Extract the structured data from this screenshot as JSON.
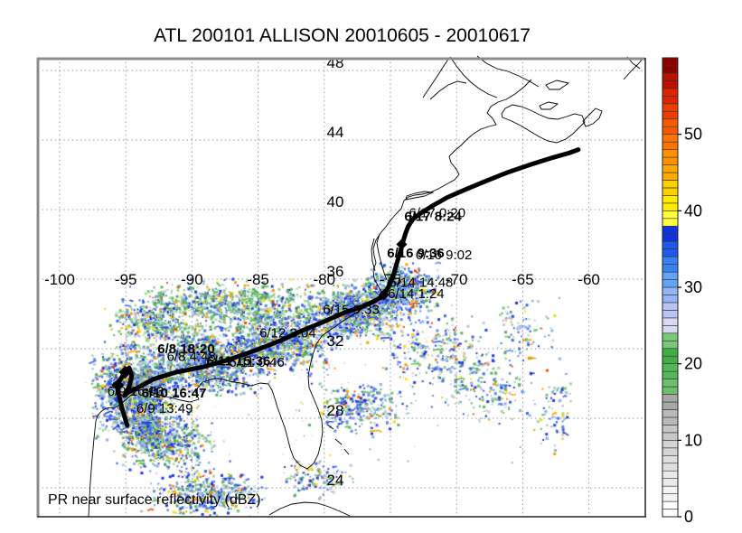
{
  "title": "ATL 200101 ALLISON 20010605 - 20010617",
  "plot": {
    "footer_label": "PR near surface reflectivity (dBZ)"
  },
  "axes": {
    "lon_tick_labels": [
      "-100",
      "-95",
      "-90",
      "-85",
      "-80",
      "-75",
      "-70",
      "-65",
      "-60"
    ],
    "lon_tick_values": [
      -100,
      -95,
      -90,
      -85,
      -80,
      -75,
      -70,
      -65,
      -60
    ],
    "lat_tick_labels": [
      "24",
      "28",
      "32",
      "36",
      "40",
      "44",
      "48"
    ],
    "lat_tick_values": [
      24,
      28,
      32,
      36,
      40,
      44,
      48
    ]
  },
  "colorbar": {
    "min": 0,
    "max": 60,
    "units": "dBZ",
    "tick_labels": [
      "0",
      "10",
      "20",
      "30",
      "40",
      "50"
    ],
    "tick_values": [
      0,
      10,
      20,
      30,
      40,
      50
    ],
    "cells_per_color": 2,
    "colors_bottom_to_top": [
      "#ffffff",
      "#f4f4f4",
      "#eaeaea",
      "#dfdfdf",
      "#d4d4d4",
      "#c7c7c7",
      "#b9b9b9",
      "#a8a8a8",
      "#6dbf6d",
      "#57b657",
      "#42ad42",
      "#79c879",
      "#d8d8f2",
      "#bcc4f2",
      "#93b5f7",
      "#63a3f7",
      "#3582f2",
      "#2057e8",
      "#1133dd",
      "#ffff40",
      "#ffee00",
      "#ffd000",
      "#ffaa00",
      "#ff9000",
      "#ff7400",
      "#f85800",
      "#ee3d00",
      "#dd2400",
      "#bb0f00",
      "#8b0000"
    ]
  },
  "chart_data": {
    "type": "scatter",
    "title": "ATL 200101 ALLISON 20010605 - 20010617",
    "storm": {
      "basin": "ATL",
      "id": "200101",
      "name": "ALLISON",
      "start": "20010605",
      "end": "20010617"
    },
    "xlabel": "",
    "ylabel": "",
    "xlim": [
      -101.6,
      -55.7
    ],
    "ylim": [
      22.3,
      48.7
    ],
    "grid": true,
    "legend_position": "none",
    "colorbar_label": "PR near surface reflectivity (dBZ)",
    "colorbar_range": [
      0,
      60
    ],
    "track_lonlat": [
      [
        -94.9,
        27.6
      ],
      [
        -95.3,
        28.6
      ],
      [
        -95.6,
        29.6
      ],
      [
        -95.6,
        30.0
      ],
      [
        -95.15,
        30.55
      ],
      [
        -94.75,
        30.9
      ],
      [
        -94.55,
        30.45
      ],
      [
        -94.75,
        29.8
      ],
      [
        -95.1,
        29.3
      ],
      [
        -94.8,
        29.5
      ],
      [
        -94.25,
        29.7
      ],
      [
        -92.9,
        30.25
      ],
      [
        -91.2,
        30.65
      ],
      [
        -89.15,
        30.95
      ],
      [
        -87.1,
        31.4
      ],
      [
        -85.05,
        31.95
      ],
      [
        -83.35,
        32.45
      ],
      [
        -81.65,
        33.05
      ],
      [
        -80.05,
        33.55
      ],
      [
        -78.55,
        34.05
      ],
      [
        -77.2,
        34.4
      ],
      [
        -76.15,
        34.75
      ],
      [
        -75.55,
        35.05
      ],
      [
        -75.15,
        35.55
      ],
      [
        -74.85,
        36.05
      ],
      [
        -74.65,
        36.55
      ],
      [
        -74.45,
        37.1
      ],
      [
        -74.25,
        37.6
      ],
      [
        -74.05,
        38.15
      ],
      [
        -73.85,
        38.65
      ],
      [
        -73.65,
        39.05
      ],
      [
        -73.3,
        39.45
      ],
      [
        -72.7,
        39.8
      ],
      [
        -71.85,
        40.2
      ],
      [
        -70.7,
        40.7
      ],
      [
        -69.35,
        41.15
      ],
      [
        -67.75,
        41.65
      ],
      [
        -66.1,
        42.15
      ],
      [
        -64.35,
        42.6
      ],
      [
        -62.7,
        43.0
      ],
      [
        -61.5,
        43.25
      ],
      [
        -60.8,
        43.45
      ]
    ],
    "track_markers_lonlat": [
      [
        -95.6,
        29.9,
        7
      ],
      [
        -95.05,
        30.65,
        7
      ],
      [
        -75.5,
        35.1,
        6
      ],
      [
        -74.15,
        38.0,
        6
      ]
    ],
    "overpass_labels": [
      {
        "text": "6/17 8:24",
        "lon": -73.95,
        "lat": 39.35,
        "bold": true
      },
      {
        "text": "6/17 0:20",
        "lon": -73.6,
        "lat": 39.55,
        "bold": false
      },
      {
        "text": "6/16 9:36",
        "lon": -75.25,
        "lat": 37.25,
        "bold": true
      },
      {
        "text": "6/16 9:02",
        "lon": -73.1,
        "lat": 37.15,
        "bold": false
      },
      {
        "text": "6/14 14:48",
        "lon": -75.1,
        "lat": 35.55,
        "bold": false
      },
      {
        "text": "6/14 1:24",
        "lon": -75.2,
        "lat": 34.9,
        "bold": false
      },
      {
        "text": "6/15 9:33",
        "lon": -80.1,
        "lat": 34.0,
        "bold": false
      },
      {
        "text": "6/12 3:04",
        "lon": -84.9,
        "lat": 32.65,
        "bold": false
      },
      {
        "text": "6/11 15:36",
        "lon": -88.9,
        "lat": 31.05,
        "bold": true
      },
      {
        "text": "6/11 0:46",
        "lon": -87.2,
        "lat": 30.95,
        "bold": false
      },
      {
        "text": "6/8 18:20",
        "lon": -92.6,
        "lat": 31.75,
        "bold": true
      },
      {
        "text": "6/8 4:48",
        "lon": -91.9,
        "lat": 31.3,
        "bold": false
      },
      {
        "text": "6/10 16:47",
        "lon": -93.8,
        "lat": 29.2,
        "bold": true
      },
      {
        "text": "6/9 16:03",
        "lon": -96.4,
        "lat": 29.3,
        "bold": false
      },
      {
        "text": "6/9 13:49",
        "lon": -94.2,
        "lat": 28.3,
        "bold": false
      }
    ],
    "reflectivity_clusters": [
      {
        "lon": -94.3,
        "lat": 29.7,
        "rlon": 3.8,
        "rlat": 2.9,
        "count": 1400,
        "bias": "mix"
      },
      {
        "lon": -88.8,
        "lat": 31.3,
        "rlon": 4.8,
        "rlat": 2.1,
        "count": 1100,
        "bias": "mix"
      },
      {
        "lon": -83.3,
        "lat": 32.6,
        "rlon": 4.8,
        "rlat": 2.1,
        "count": 900,
        "bias": "mix"
      },
      {
        "lon": -77.9,
        "lat": 34.1,
        "rlon": 4.1,
        "rlat": 1.8,
        "count": 850,
        "bias": "mix"
      },
      {
        "lon": -74.5,
        "lat": 35.4,
        "rlon": 3.1,
        "rlat": 1.6,
        "count": 650,
        "bias": "mix"
      },
      {
        "lon": -87.4,
        "lat": 34.6,
        "rlon": 8.2,
        "rlat": 1.5,
        "count": 750,
        "bias": "green"
      },
      {
        "lon": -92.9,
        "lat": 33.6,
        "rlon": 3.8,
        "rlat": 1.6,
        "count": 380,
        "bias": "green"
      },
      {
        "lon": -91.9,
        "lat": 26.6,
        "rlon": 4.1,
        "rlat": 2.1,
        "count": 480,
        "bias": "mix"
      },
      {
        "lon": -88.8,
        "lat": 23.7,
        "rlon": 4.8,
        "rlat": 1.5,
        "count": 430,
        "bias": "mix"
      },
      {
        "lon": -93.6,
        "lat": 27.5,
        "rlon": 2.2,
        "rlat": 1.5,
        "count": 380,
        "bias": "mix"
      },
      {
        "lon": -80.6,
        "lat": 24.6,
        "rlon": 3.1,
        "rlat": 1.3,
        "count": 130,
        "bias": "mix"
      },
      {
        "lon": -77.5,
        "lat": 28.7,
        "rlon": 3.8,
        "rlat": 1.7,
        "count": 280,
        "bias": "mix"
      },
      {
        "lon": -71.7,
        "lat": 31.8,
        "rlon": 4.4,
        "rlat": 2.6,
        "count": 260,
        "bias": "mix"
      },
      {
        "lon": -67.6,
        "lat": 29.7,
        "rlon": 4.1,
        "rlat": 2.3,
        "count": 160,
        "bias": "mix"
      },
      {
        "lon": -65.2,
        "lat": 33.1,
        "rlon": 3.1,
        "rlat": 2.1,
        "count": 90,
        "bias": "mix"
      },
      {
        "lon": -62.5,
        "lat": 28.7,
        "rlon": 1.7,
        "rlat": 3.1,
        "count": 70,
        "bias": "mix"
      },
      {
        "lon": -78.5,
        "lat": 29.5,
        "rlon": 18.0,
        "rlat": 6.0,
        "count": 130,
        "bias": "sparse"
      }
    ]
  },
  "speckle_palette": [
    [
      "#1e3fd8",
      0.13
    ],
    [
      "#3a62ee",
      0.12
    ],
    [
      "#5d87f0",
      0.1
    ],
    [
      "#8fadf0",
      0.09
    ],
    [
      "#b9c6ec",
      0.06
    ],
    [
      "#58b158",
      0.12
    ],
    [
      "#7ac47a",
      0.1
    ],
    [
      "#a3d6a3",
      0.1
    ],
    [
      "#c9c9c9",
      0.05
    ],
    [
      "#ff9b00",
      0.05
    ],
    [
      "#ffd800",
      0.03
    ],
    [
      "#f04a00",
      0.02
    ],
    [
      "#2a2ae0",
      0.03
    ]
  ]
}
